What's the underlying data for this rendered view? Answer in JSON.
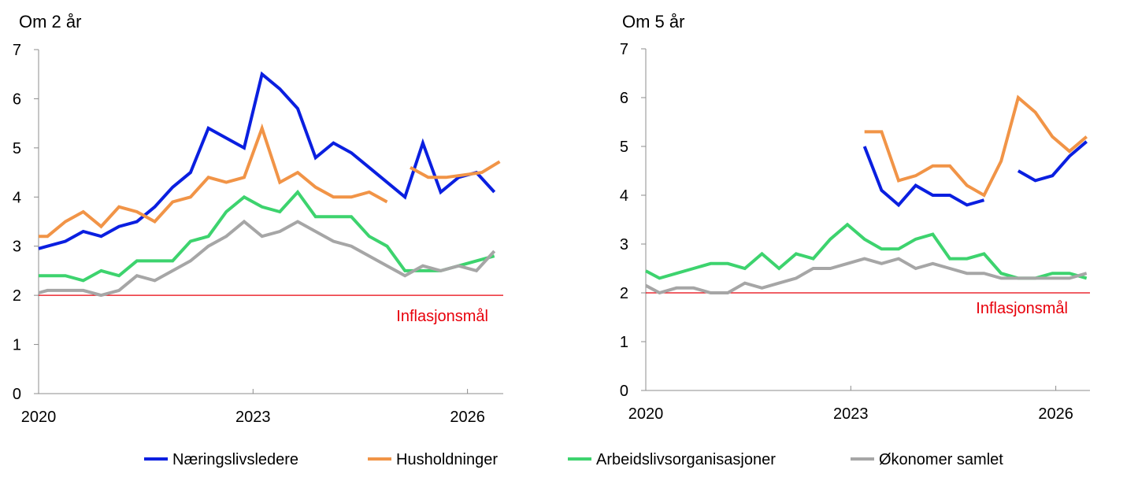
{
  "chart_data": [
    {
      "type": "line",
      "title": "Om 2 år",
      "xlabel": "",
      "ylabel": "",
      "xlim": [
        2020.0,
        2026.5
      ],
      "ylim": [
        0,
        7
      ],
      "y_ticks": [
        "0",
        "1",
        "2",
        "3",
        "4",
        "5",
        "6",
        "7"
      ],
      "x_ticks": [
        {
          "label": "2020",
          "value": 2020.0
        },
        {
          "label": "2023",
          "value": 2023.0
        },
        {
          "label": "2026",
          "value": 2026.0
        }
      ],
      "target": {
        "label": "Inflasjonsmål",
        "value": 2.0,
        "color": "#e8000b"
      },
      "series": [
        {
          "name": "Næringslivsledere",
          "color": "#0a1fe0",
          "x": [
            2020.0,
            2020.125,
            2020.375,
            2020.625,
            2020.875,
            2021.125,
            2021.375,
            2021.625,
            2021.875,
            2022.125,
            2022.375,
            2022.625,
            2022.875,
            2023.125,
            2023.375,
            2023.625,
            2023.875,
            2024.125,
            2024.375,
            2024.625,
            2024.875,
            2025.125,
            2025.375,
            2025.625,
            2025.875,
            2026.125,
            2026.375
          ],
          "y": [
            2.95,
            3.0,
            3.1,
            3.3,
            3.2,
            3.4,
            3.5,
            3.8,
            4.2,
            4.5,
            5.4,
            5.2,
            5.0,
            6.5,
            6.2,
            5.8,
            4.8,
            5.1,
            4.9,
            4.6,
            4.3,
            4.0,
            5.1,
            4.1,
            4.4,
            4.5,
            4.1
          ]
        },
        {
          "name": "Husholdninger",
          "color": "#f19447",
          "segments": [
            {
              "x": [
                2020.0,
                2020.125,
                2020.375,
                2020.625,
                2020.875,
                2021.125,
                2021.375,
                2021.625,
                2021.875,
                2022.125,
                2022.375,
                2022.625,
                2022.875,
                2023.125,
                2023.375,
                2023.625,
                2023.875,
                2024.125,
                2024.375,
                2024.625,
                2024.875
              ],
              "y": [
                3.2,
                3.2,
                3.5,
                3.7,
                3.4,
                3.8,
                3.7,
                3.5,
                3.9,
                4.0,
                4.4,
                4.3,
                4.4,
                5.4,
                4.3,
                4.5,
                4.2,
                4.0,
                4.0,
                4.1,
                3.9
              ]
            },
            {
              "x": [
                2025.2,
                2025.45,
                2025.7,
                2025.95,
                2026.2,
                2026.45
              ],
              "y": [
                4.6,
                4.4,
                4.4,
                4.45,
                4.5,
                4.72
              ]
            }
          ]
        },
        {
          "name": "Arbeidslivsorganisasjoner",
          "color": "#3dd36e",
          "x": [
            2020.0,
            2020.125,
            2020.375,
            2020.625,
            2020.875,
            2021.125,
            2021.375,
            2021.625,
            2021.875,
            2022.125,
            2022.375,
            2022.625,
            2022.875,
            2023.125,
            2023.375,
            2023.625,
            2023.875,
            2024.125,
            2024.375,
            2024.625,
            2024.875,
            2025.125,
            2025.375,
            2025.625,
            2025.875,
            2026.125,
            2026.375
          ],
          "y": [
            2.4,
            2.4,
            2.4,
            2.3,
            2.5,
            2.4,
            2.7,
            2.7,
            2.7,
            3.1,
            3.2,
            3.7,
            4.0,
            3.8,
            3.7,
            4.1,
            3.6,
            3.6,
            3.6,
            3.2,
            3.0,
            2.5,
            2.5,
            2.5,
            2.6,
            2.7,
            2.8
          ]
        },
        {
          "name": "Økonomer samlet",
          "color": "#a6a6a6",
          "x": [
            2020.0,
            2020.125,
            2020.375,
            2020.625,
            2020.875,
            2021.125,
            2021.375,
            2021.625,
            2021.875,
            2022.125,
            2022.375,
            2022.625,
            2022.875,
            2023.125,
            2023.375,
            2023.625,
            2023.875,
            2024.125,
            2024.375,
            2024.625,
            2024.875,
            2025.125,
            2025.375,
            2025.625,
            2025.875,
            2026.125,
            2026.375
          ],
          "y": [
            2.05,
            2.1,
            2.1,
            2.1,
            2.0,
            2.1,
            2.4,
            2.3,
            2.5,
            2.7,
            3.0,
            3.2,
            3.5,
            3.2,
            3.3,
            3.5,
            3.3,
            3.1,
            3.0,
            2.8,
            2.6,
            2.4,
            2.6,
            2.5,
            2.6,
            2.5,
            2.9
          ]
        }
      ]
    },
    {
      "type": "line",
      "title": "Om 5 år",
      "xlabel": "",
      "ylabel": "",
      "xlim": [
        2020.0,
        2026.5
      ],
      "ylim": [
        0,
        7
      ],
      "y_ticks": [
        "0",
        "1",
        "2",
        "3",
        "4",
        "5",
        "6",
        "7"
      ],
      "x_ticks": [
        {
          "label": "2020",
          "value": 2020.0
        },
        {
          "label": "2023",
          "value": 2023.0
        },
        {
          "label": "2026",
          "value": 2026.0
        }
      ],
      "target": {
        "label": "Inflasjonsmål",
        "value": 2.0,
        "color": "#e8000b"
      },
      "series": [
        {
          "name": "Næringslivsledere",
          "color": "#0a1fe0",
          "segments": [
            {
              "x": [
                2023.2,
                2023.45,
                2023.7,
                2023.95,
                2024.2,
                2024.45,
                2024.7,
                2024.95
              ],
              "y": [
                5.0,
                4.1,
                3.8,
                4.2,
                4.0,
                4.0,
                3.8,
                3.9
              ]
            },
            {
              "x": [
                2025.45,
                2025.7,
                2025.95,
                2026.2,
                2026.45
              ],
              "y": [
                4.5,
                4.3,
                4.4,
                4.8,
                5.1
              ]
            }
          ]
        },
        {
          "name": "Husholdninger",
          "color": "#f19447",
          "x": [
            2023.2,
            2023.45,
            2023.7,
            2023.95,
            2024.2,
            2024.45,
            2024.7,
            2024.95,
            2025.2,
            2025.45,
            2025.7,
            2025.95,
            2026.2,
            2026.45
          ],
          "y": [
            5.3,
            5.3,
            4.3,
            4.4,
            4.6,
            4.6,
            4.2,
            4.0,
            4.7,
            6.0,
            5.7,
            5.2,
            4.9,
            5.2
          ]
        },
        {
          "name": "Arbeidslivsorganisasjoner",
          "color": "#3dd36e",
          "x": [
            2020.0,
            2020.2,
            2020.45,
            2020.7,
            2020.95,
            2021.2,
            2021.45,
            2021.7,
            2021.95,
            2022.2,
            2022.45,
            2022.7,
            2022.95,
            2023.2,
            2023.45,
            2023.7,
            2023.95,
            2024.2,
            2024.45,
            2024.7,
            2024.95,
            2025.2,
            2025.45,
            2025.7,
            2025.95,
            2026.2,
            2026.45
          ],
          "y": [
            2.45,
            2.3,
            2.4,
            2.5,
            2.6,
            2.6,
            2.5,
            2.8,
            2.5,
            2.8,
            2.7,
            3.1,
            3.4,
            3.1,
            2.9,
            2.9,
            3.1,
            3.2,
            2.7,
            2.7,
            2.8,
            2.4,
            2.3,
            2.3,
            2.4,
            2.4,
            2.3
          ]
        },
        {
          "name": "Økonomer samlet",
          "color": "#a6a6a6",
          "x": [
            2020.0,
            2020.2,
            2020.45,
            2020.7,
            2020.95,
            2021.2,
            2021.45,
            2021.7,
            2021.95,
            2022.2,
            2022.45,
            2022.7,
            2022.95,
            2023.2,
            2023.45,
            2023.7,
            2023.95,
            2024.2,
            2024.45,
            2024.7,
            2024.95,
            2025.2,
            2025.45,
            2025.7,
            2025.95,
            2026.2,
            2026.45
          ],
          "y": [
            2.15,
            2.0,
            2.1,
            2.1,
            2.0,
            2.0,
            2.2,
            2.1,
            2.2,
            2.3,
            2.5,
            2.5,
            2.6,
            2.7,
            2.6,
            2.7,
            2.5,
            2.6,
            2.5,
            2.4,
            2.4,
            2.3,
            2.3,
            2.3,
            2.3,
            2.3,
            2.4
          ]
        }
      ]
    }
  ],
  "legend": {
    "position": "bottom",
    "items": [
      {
        "label": "Næringslivsledere",
        "color": "#0a1fe0"
      },
      {
        "label": "Husholdninger",
        "color": "#f19447"
      },
      {
        "label": "Arbeidslivsorganisasjoner",
        "color": "#3dd36e"
      },
      {
        "label": "Økonomer samlet",
        "color": "#a6a6a6"
      }
    ]
  }
}
